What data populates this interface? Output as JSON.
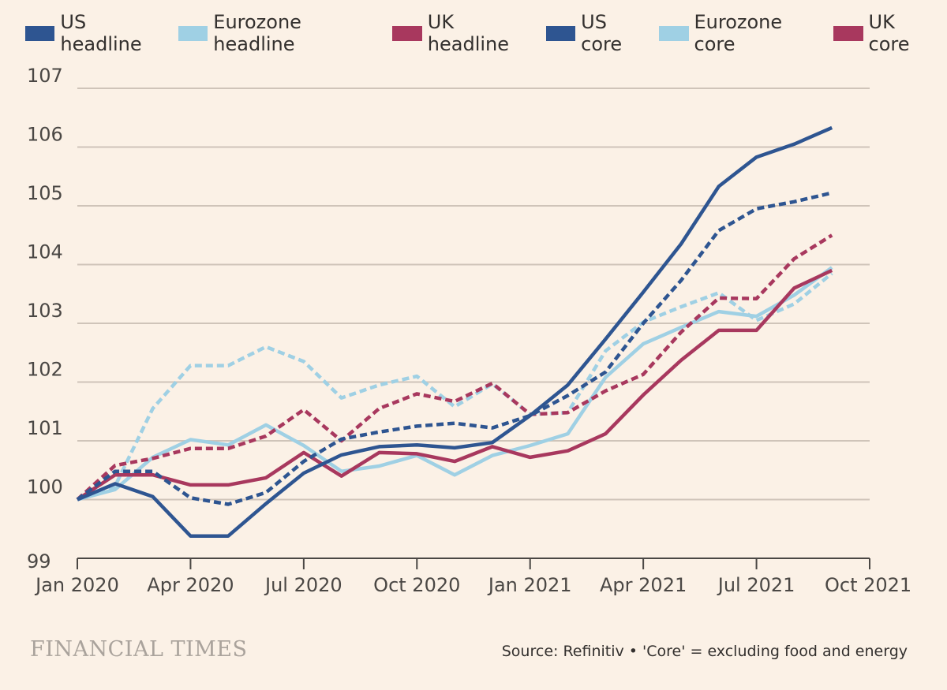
{
  "brand": {
    "logo_text": "FINANCIAL TIMES"
  },
  "source_note": "Source: Refinitiv • 'Core' = excluding food and energy",
  "chart_data": {
    "type": "line",
    "title": "",
    "xlabel": "",
    "ylabel": "",
    "ylim": [
      99,
      107
    ],
    "y_ticks": [
      "99",
      "100",
      "101",
      "102",
      "103",
      "104",
      "105",
      "106",
      "107"
    ],
    "x_tick_labels": [
      "Jan 2020",
      "Apr 2020",
      "Jul 2020",
      "Oct 2020",
      "Jan 2021",
      "Apr 2021",
      "Jul 2021",
      "Oct 2021"
    ],
    "x": [
      "Jan 2020",
      "Feb 2020",
      "Mar 2020",
      "Apr 2020",
      "May 2020",
      "Jun 2020",
      "Jul 2020",
      "Aug 2020",
      "Sep 2020",
      "Oct 2020",
      "Nov 2020",
      "Dec 2020",
      "Jan 2021",
      "Feb 2021",
      "Mar 2021",
      "Apr 2021",
      "May 2021",
      "Jun 2021",
      "Jul 2021",
      "Aug 2021",
      "Sep 2021"
    ],
    "series": [
      {
        "name": "US headline",
        "color": "#2e5591",
        "dashed": false,
        "values": [
          100.0,
          100.27,
          100.05,
          99.38,
          99.38,
          99.93,
          100.45,
          100.76,
          100.9,
          100.93,
          100.88,
          100.97,
          101.43,
          101.95,
          102.73,
          103.53,
          104.35,
          105.33,
          105.83,
          106.05,
          106.33
        ]
      },
      {
        "name": "Eurozone headline",
        "color": "#9fd0e4",
        "dashed": false,
        "values": [
          100.0,
          100.17,
          100.72,
          101.02,
          100.93,
          101.27,
          100.92,
          100.48,
          100.57,
          100.75,
          100.42,
          100.75,
          100.92,
          101.12,
          102.08,
          102.65,
          102.93,
          103.2,
          103.12,
          103.48,
          103.95
        ]
      },
      {
        "name": "UK headline",
        "color": "#a8385e",
        "dashed": false,
        "values": [
          100.0,
          100.42,
          100.42,
          100.25,
          100.25,
          100.37,
          100.8,
          100.4,
          100.8,
          100.78,
          100.65,
          100.9,
          100.72,
          100.83,
          101.12,
          101.78,
          102.37,
          102.88,
          102.88,
          103.6,
          103.9
        ]
      },
      {
        "name": "US core",
        "color": "#2e5591",
        "dashed": true,
        "values": [
          100.0,
          100.48,
          100.48,
          100.03,
          99.92,
          100.12,
          100.65,
          101.03,
          101.15,
          101.25,
          101.3,
          101.22,
          101.43,
          101.77,
          102.17,
          103.0,
          103.73,
          104.58,
          104.95,
          105.07,
          105.22
        ]
      },
      {
        "name": "Eurozone core",
        "color": "#9fd0e4",
        "dashed": true,
        "values": [
          100.0,
          100.23,
          101.55,
          102.28,
          102.28,
          102.6,
          102.35,
          101.73,
          101.95,
          102.1,
          101.58,
          101.97,
          101.45,
          101.48,
          102.53,
          103.02,
          103.28,
          103.52,
          103.05,
          103.33,
          103.85
        ]
      },
      {
        "name": "UK core",
        "color": "#a8385e",
        "dashed": true,
        "values": [
          100.0,
          100.58,
          100.7,
          100.87,
          100.87,
          101.08,
          101.53,
          101.0,
          101.55,
          101.8,
          101.67,
          101.98,
          101.45,
          101.48,
          101.85,
          102.13,
          102.85,
          103.43,
          103.42,
          104.1,
          104.5
        ]
      }
    ]
  }
}
